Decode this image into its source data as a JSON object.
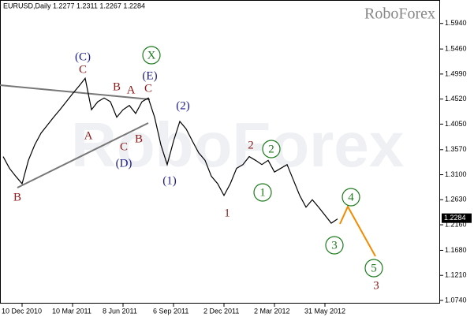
{
  "chart_data": {
    "type": "line",
    "header": "EURUSD,Daily  1.2277 1.2311 1.2267 1.2284",
    "brand": "RoboForex",
    "watermark": "RoboForex",
    "current_price": {
      "value": 1.2284,
      "label": "1.2284"
    },
    "categories": [
      null,
      null,
      null,
      "10 Dec 2010",
      null,
      null,
      null,
      null,
      null,
      null,
      null,
      "10 Mar 2011",
      null,
      null,
      null,
      null,
      null,
      null,
      null,
      "8 Jun 2011",
      null,
      null,
      null,
      null,
      null,
      null,
      null,
      "6 Sep 2011",
      null,
      null,
      null,
      null,
      null,
      null,
      null,
      "2 Dec 2011",
      null,
      null,
      null,
      null,
      null,
      null,
      null,
      "2 Mar 2012",
      null,
      null,
      null,
      null,
      null,
      null,
      null,
      "31 May 2012",
      null,
      null
    ],
    "series": [
      {
        "name": "EURUSD",
        "color": "#000000",
        "values": [
          1.344,
          1.322,
          1.307,
          1.293,
          1.337,
          1.366,
          1.388,
          1.403,
          1.418,
          1.432,
          1.447,
          1.462,
          1.476,
          1.491,
          1.432,
          1.447,
          1.454,
          1.447,
          1.418,
          1.432,
          1.44,
          1.425,
          1.447,
          1.454,
          1.418,
          1.366,
          1.329,
          1.373,
          1.41,
          1.396,
          1.373,
          1.351,
          1.337,
          1.307,
          1.293,
          1.271,
          1.293,
          1.322,
          1.329,
          1.344,
          1.337,
          1.329,
          1.337,
          1.315,
          1.322,
          1.329,
          1.3,
          1.271,
          1.249,
          1.263,
          1.249,
          1.234,
          1.219,
          1.227
        ]
      }
    ],
    "ylim": [
      1.068,
      1.638
    ],
    "yticks": [
      {
        "value": 1.594,
        "label": "1.5940"
      },
      {
        "value": 1.546,
        "label": "1.5460"
      },
      {
        "value": 1.499,
        "label": "1.4990"
      },
      {
        "value": 1.452,
        "label": "1.4520"
      },
      {
        "value": 1.405,
        "label": "1.4050"
      },
      {
        "value": 1.357,
        "label": "1.3570"
      },
      {
        "value": 1.31,
        "label": "1.3100"
      },
      {
        "value": 1.263,
        "label": "1.2630"
      },
      {
        "value": 1.216,
        "label": "1.2160"
      },
      {
        "value": 1.168,
        "label": "1.1680"
      },
      {
        "value": 1.121,
        "label": "1.1210"
      },
      {
        "value": 1.074,
        "label": "1.0740"
      }
    ],
    "annotations": [
      "(C)",
      "C",
      "B",
      "A",
      "C",
      "X",
      "(E)",
      "A",
      "C",
      "B",
      "(D)",
      "B",
      "(1)",
      "(2)",
      "2",
      "2",
      "1",
      "1",
      "4",
      "3",
      "5",
      "3"
    ]
  }
}
